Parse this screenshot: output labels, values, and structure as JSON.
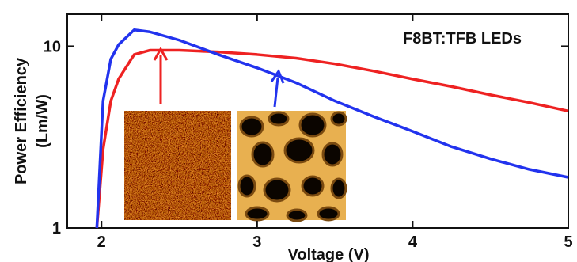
{
  "chart_data": {
    "type": "line",
    "annotation": "F8BT:TFB LEDs",
    "y_label_lines": [
      "Power Efficiency",
      "(Lm/W)"
    ],
    "x_label": "Voltage (V)",
    "x": [
      1.97,
      2.01,
      2.06,
      2.11,
      2.21,
      2.31,
      2.5,
      2.75,
      3.0,
      3.25,
      3.5,
      3.75,
      4.0,
      4.25,
      4.5,
      4.75,
      5.0
    ],
    "series": [
      {
        "color": "#ee2222",
        "values": [
          1,
          2.7,
          5,
          6.6,
          9.0,
          9.5,
          9.5,
          9.3,
          9.0,
          8.6,
          8.0,
          7.3,
          6.6,
          6.0,
          5.4,
          4.9,
          4.4
        ]
      },
      {
        "color": "#2233ee",
        "values": [
          1,
          5,
          8.5,
          10.2,
          12.3,
          12.0,
          10.8,
          9.0,
          7.6,
          6.3,
          5.0,
          4.1,
          3.4,
          2.8,
          2.4,
          2.1,
          1.9
        ]
      }
    ],
    "xlim": [
      1.78,
      5
    ],
    "xticks": [
      2,
      3,
      4,
      5
    ],
    "ylim": [
      1,
      15
    ],
    "yticks": [
      1,
      10
    ],
    "ylog": true
  }
}
